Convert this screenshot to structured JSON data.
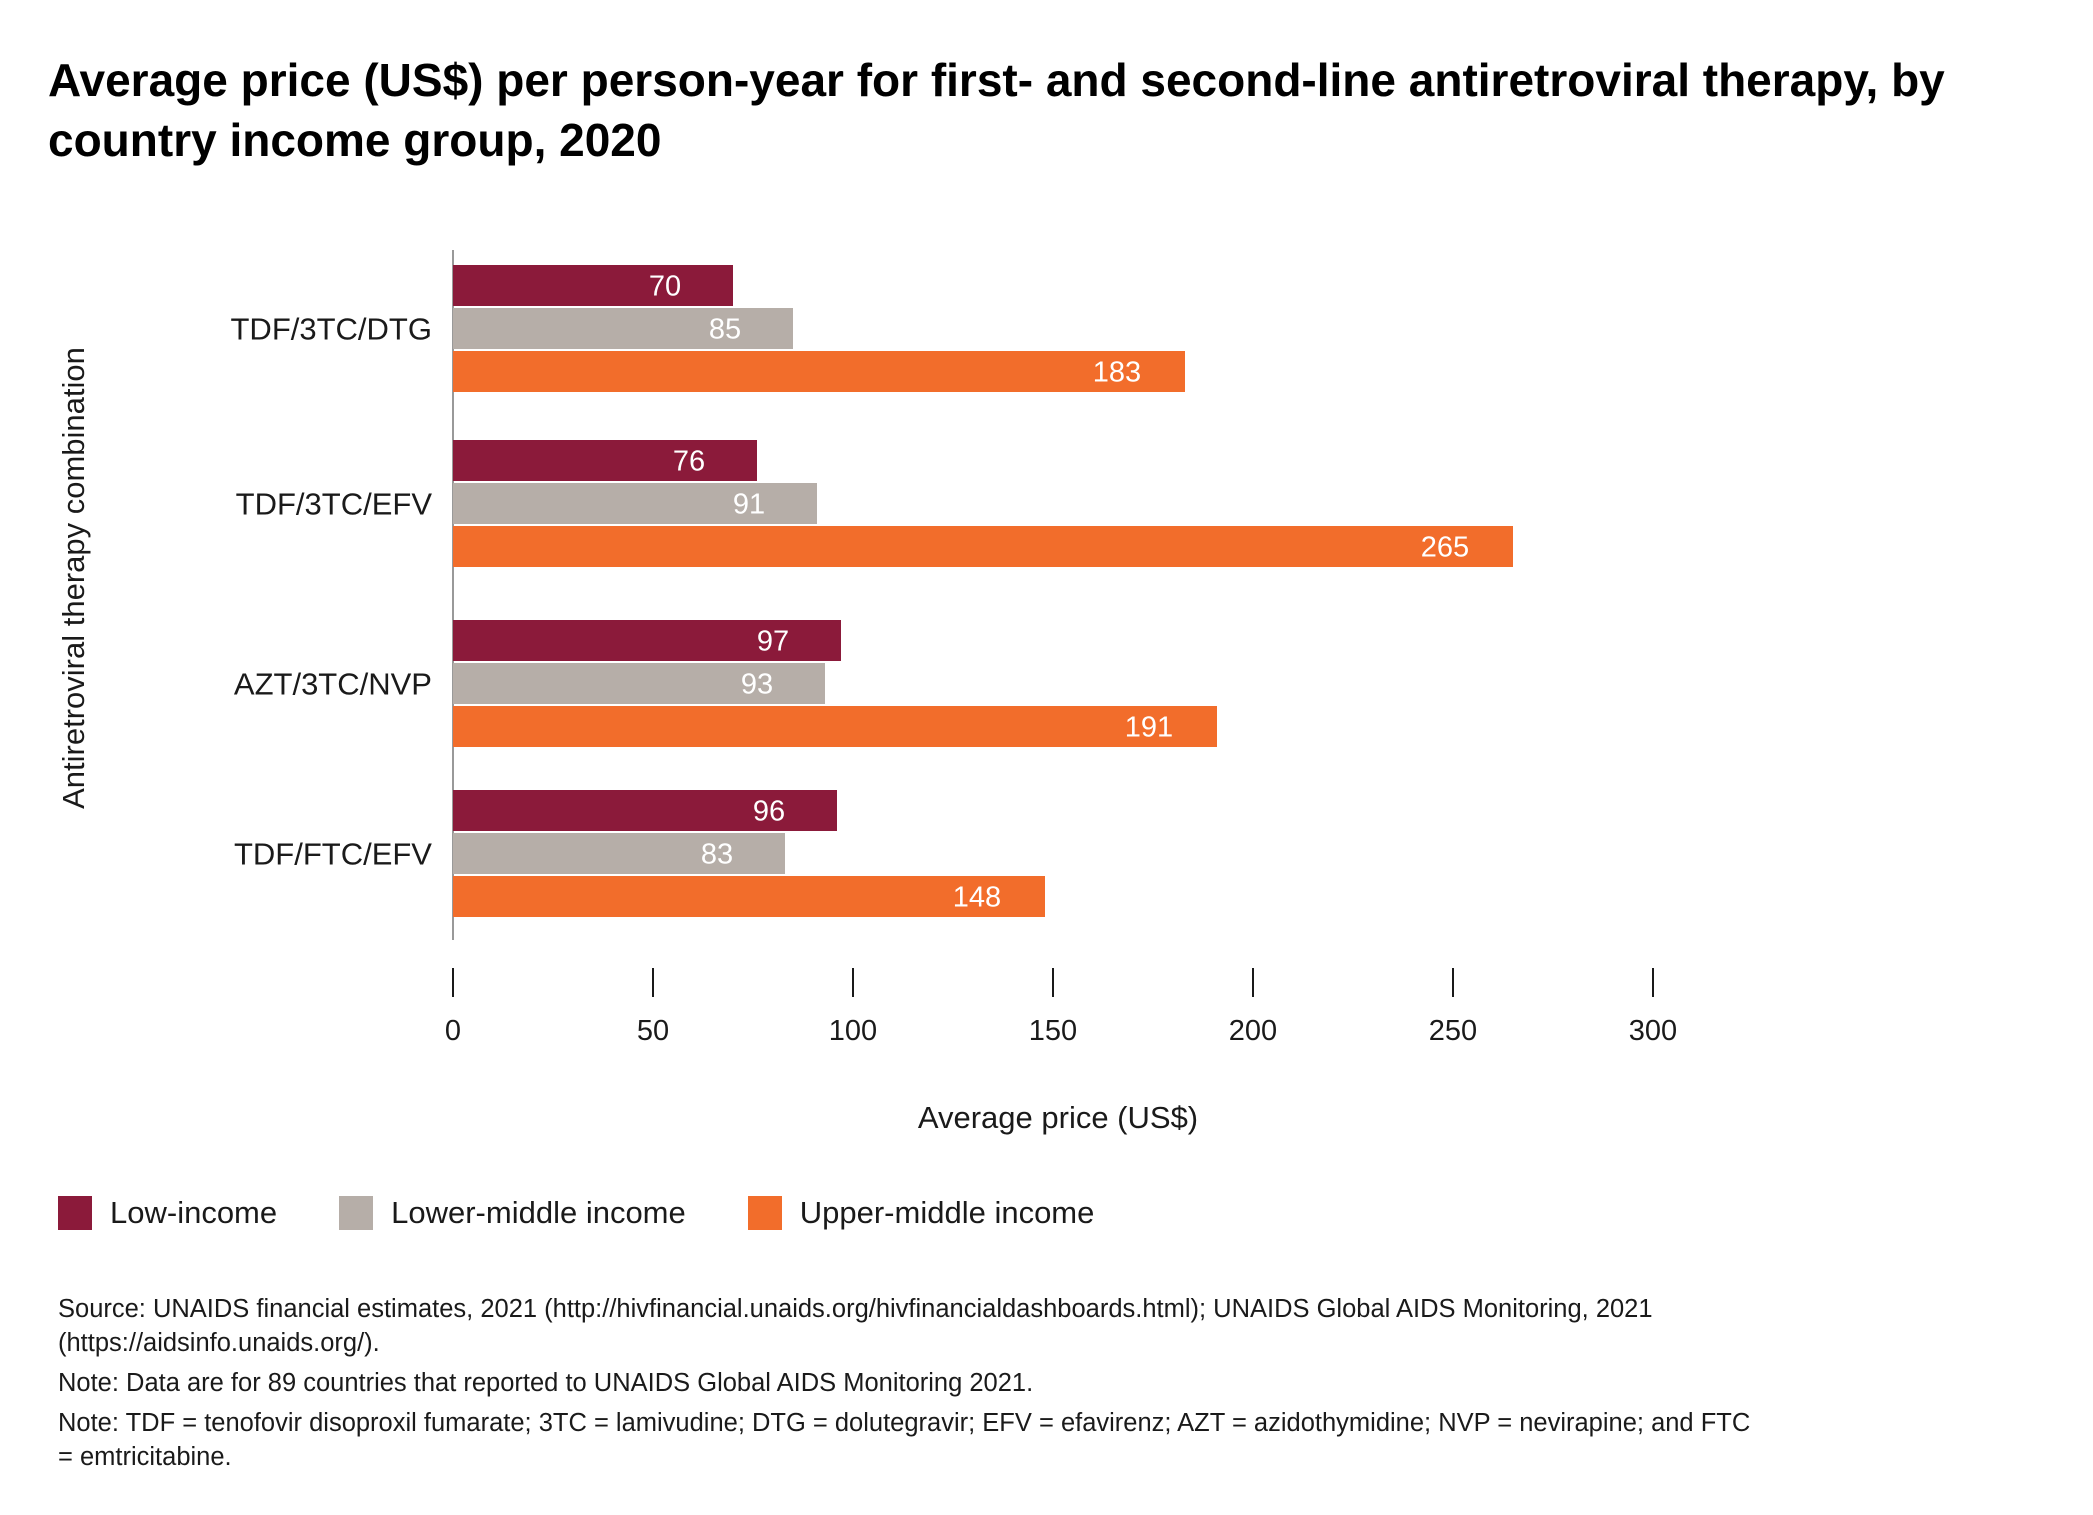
{
  "title": "Average price (US$) per person-year for first- and second-line antiretroviral therapy, by country income group, 2020",
  "chart_data": {
    "type": "bar",
    "orientation": "horizontal",
    "categories": [
      "TDF/3TC/DTG",
      "TDF/3TC/EFV",
      "AZT/3TC/NVP",
      "TDF/FTC/EFV"
    ],
    "series": [
      {
        "name": "Low-income",
        "color": "#8B1A3A",
        "values": [
          70,
          76,
          97,
          96
        ]
      },
      {
        "name": "Lower-middle income",
        "color": "#B6AEA8",
        "values": [
          85,
          91,
          93,
          83
        ]
      },
      {
        "name": "Upper-middle income",
        "color": "#F26D2B",
        "values": [
          183,
          265,
          191,
          148
        ]
      }
    ],
    "xlabel": "Average price (US$)",
    "ylabel": "Antiretroviral therapy combination",
    "xlim": [
      0,
      300
    ],
    "xticks": [
      "0",
      "50",
      "100",
      "150",
      "200",
      "250",
      "300"
    ],
    "grid": false,
    "legend_position": "bottom-left"
  },
  "legend": [
    {
      "label": "Low-income",
      "color": "#8B1A3A"
    },
    {
      "label": "Lower-middle income",
      "color": "#B6AEA8"
    },
    {
      "label": "Upper-middle income",
      "color": "#F26D2B"
    }
  ],
  "notes": {
    "source": "Source: UNAIDS financial estimates, 2021 (http://hivfinancial.unaids.org/hivfinancialdashboards.html); UNAIDS Global AIDS Monitoring, 2021 (https://aidsinfo.unaids.org/).",
    "note1": "Note: Data are for 89 countries that reported to UNAIDS Global AIDS Monitoring 2021.",
    "note2": "Note: TDF = tenofovir disoproxil fumarate; 3TC = lamivudine; DTG = dolutegravir; EFV = efavirenz; AZT = azidothymidine; NVP = nevirapine; and FTC = emtricitabine."
  }
}
